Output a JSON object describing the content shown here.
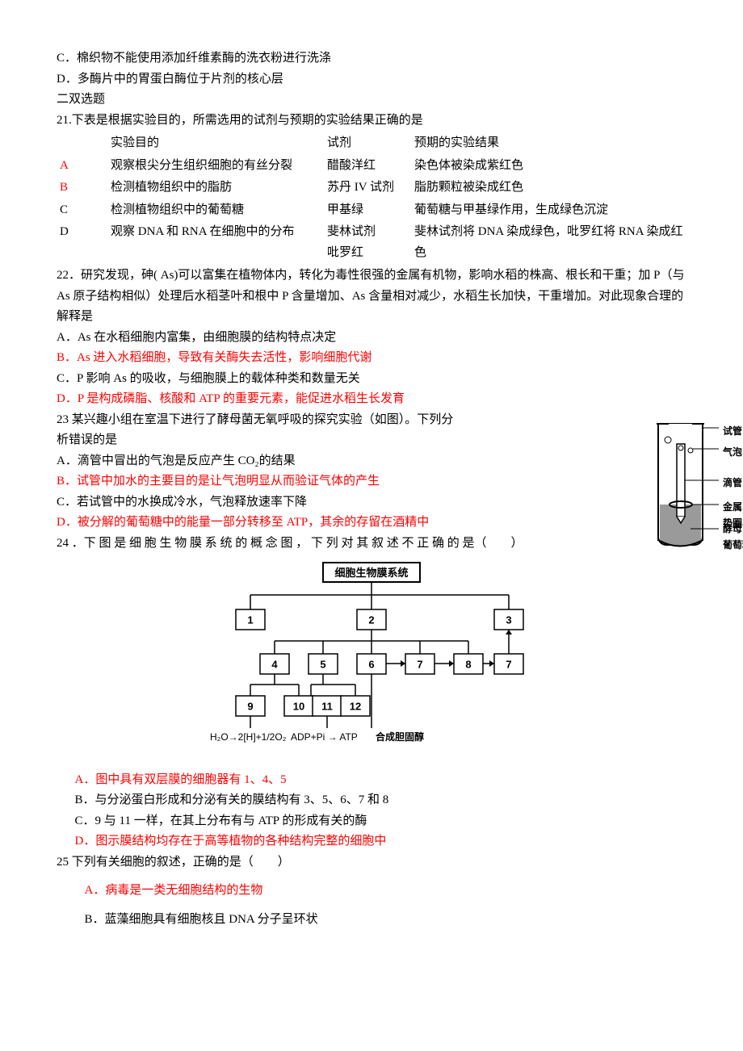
{
  "pre": {
    "optC": "C．棉织物不能使用添加纤维素酶的洗衣粉进行洗涤",
    "optD": "D．多酶片中的胃蛋白酶位于片剂的核心层"
  },
  "section2": "二双选题",
  "q21": {
    "stem": "21.下表是根据实验目的，所需选用的试剂与预期的实验结果正确的是",
    "head": {
      "c0": "",
      "c1": "实验目的",
      "c2": "试剂",
      "c3": "预期的实验结果"
    },
    "rows": [
      {
        "letter": "A",
        "color": "#ff0000",
        "purpose": "观察根尖分生组织细胞的有丝分裂",
        "reagent": "醋酸洋红",
        "result": "染色体被染成紫红色"
      },
      {
        "letter": "B",
        "color": "#ff0000",
        "purpose": "检测植物组织中的脂肪",
        "reagent": "苏丹 IV 试剂",
        "result": "脂肪颗粒被染成红色"
      },
      {
        "letter": "C",
        "color": "#000000",
        "purpose": "检测植物组织中的葡萄糖",
        "reagent": "甲基绿",
        "result": "葡萄糖与甲基绿作用，生成绿色沉淀"
      },
      {
        "letter": "D",
        "color": "#000000",
        "purpose": "观察 DNA 和 RNA 在细胞中的分布",
        "reagent": "斐林试剂\n吡罗红",
        "result": "斐林试剂将 DNA 染成绿色，吡罗红将 RNA 染成红色"
      }
    ]
  },
  "q22": {
    "stem": "22．研究发现，砷( As)可以富集在植物体内，转化为毒性很强的金属有机物，影响水稻的株高、根长和干重；加 P（与 As 原子结构相似）处理后水稻茎叶和根中 P 含量增加、As 含量相对减少，水稻生长加快，干重增加。对此现象合理的解释是",
    "A": "A．As 在水稻细胞内富集，由细胞膜的结构特点决定",
    "B": "B．As 进入水稻细胞，导致有关酶失去活性，影响细胞代谢",
    "C": "C．P 影响 As 的吸收，与细胞膜上的载体种类和数量无关",
    "D": "D．P 是构成磷脂、核酸和 ATP 的重要元素，能促进水稻生长发育"
  },
  "q23": {
    "stem1": "23 某兴趣小组在室温下进行了酵母菌无氧呼吸的探究实验（如图）。下列分",
    "stem2": "析错误的是",
    "A": "A．滴管中冒出的气泡是反应产生 CO₂的结果",
    "B": "B．试管中加水的主要目的是让气泡明显从而验证气体的产生",
    "C": "C．若试管中的水换成冷水，气泡释放速率下降",
    "D": "D．被分解的葡萄糖中的能量一部分转移至 ATP，其余的存留在酒精中",
    "figLabels": {
      "l1": "试管",
      "l2": "气泡",
      "l3": "滴管",
      "l4": "金属垫圈",
      "l5": "酵母菌和\n葡萄糖溶液"
    },
    "figColors": {
      "tube": "#000000",
      "fill": "#999999",
      "bg": "#ffffff"
    }
  },
  "q24": {
    "stem": "24 ．下 图 是 细 胞 生 物 膜 系 统 的 概 念 图 ， 下 列 对 其 叙 述 不 正 确 的 是（　　）",
    "title": "细胞生物膜系统",
    "boxes": [
      "1",
      "2",
      "3",
      "4",
      "5",
      "6",
      "7",
      "8",
      "7",
      "9",
      "10",
      "11",
      "12"
    ],
    "bottom": {
      "l1": "H₂O→2[H]+1/2O₂",
      "l2": "ADP+Pi → ATP",
      "l3": "合成胆固醇"
    },
    "A": "A．图中具有双层膜的细胞器有 1、4、5",
    "B": "B．与分泌蛋白形成和分泌有关的膜结构有 3、5、6、7 和 8",
    "C": "C．9 与 11 一样，在其上分布有与 ATP 的形成有关的酶",
    "D": "D．图示膜结构均存在于高等植物的各种结构完整的细胞中",
    "diagramStyle": {
      "boxBorder": "#000000",
      "boxFill": "#ffffff",
      "font": "SimHei",
      "fontsize": 13
    }
  },
  "q25": {
    "stem": "25 下列有关细胞的叙述，正确的是（　　）",
    "A": "A．病毒是一类无细胞结构的生物",
    "B": "B．蓝藻细胞具有细胞核且 DNA 分子呈环状"
  }
}
